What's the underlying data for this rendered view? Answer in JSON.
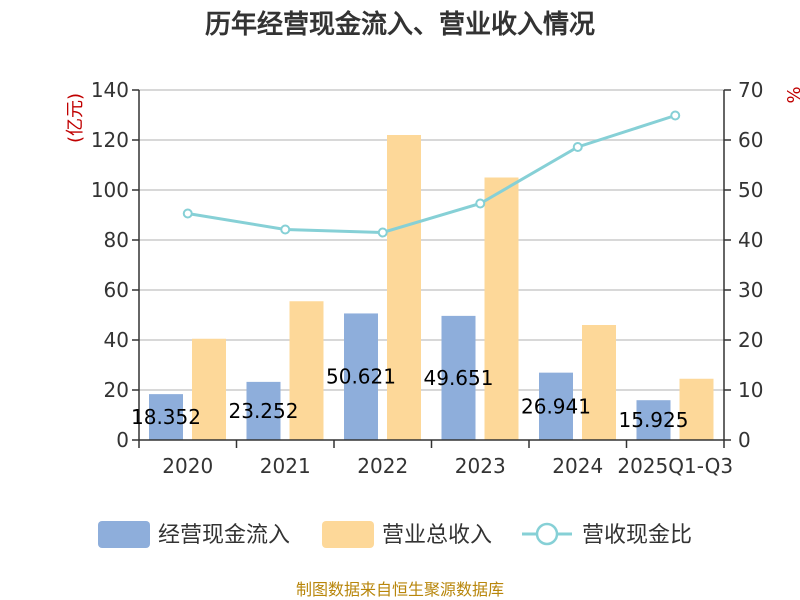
{
  "chart_data": {
    "type": "bar",
    "title": "历年经营现金流入、营业收入情况",
    "categories": [
      "2020",
      "2021",
      "2022",
      "2023",
      "2024",
      "2025Q1-Q3"
    ],
    "left_axis": {
      "unit": "(亿元)",
      "ylim": [
        0,
        140
      ],
      "ticks": [
        0,
        20,
        40,
        60,
        80,
        100,
        120,
        140
      ]
    },
    "right_axis": {
      "unit": "%",
      "ylim": [
        0,
        70
      ],
      "ticks": [
        0,
        10,
        20,
        30,
        40,
        50,
        60,
        70
      ]
    },
    "series": [
      {
        "name": "经营现金流入",
        "type": "bar",
        "axis": "left",
        "color": "#8eaedb",
        "values": [
          18.35,
          23.25,
          50.62,
          49.65,
          26.94,
          15.92
        ],
        "labels": [
          "18.352",
          "23.252",
          "50.621",
          "49.651",
          "26.941",
          "15.925"
        ]
      },
      {
        "name": "营业总收入",
        "type": "bar",
        "axis": "left",
        "color": "#fdd899",
        "values": [
          40.5,
          55.5,
          122,
          105,
          46,
          24.5
        ]
      },
      {
        "name": "营收现金比",
        "type": "line",
        "axis": "right",
        "color": "#86d0d6",
        "values": [
          45.3,
          42.1,
          41.5,
          47.3,
          58.6,
          64.9
        ]
      }
    ],
    "grid": true,
    "legend": "bottom"
  },
  "source": "制图数据来自恒生聚源数据库"
}
